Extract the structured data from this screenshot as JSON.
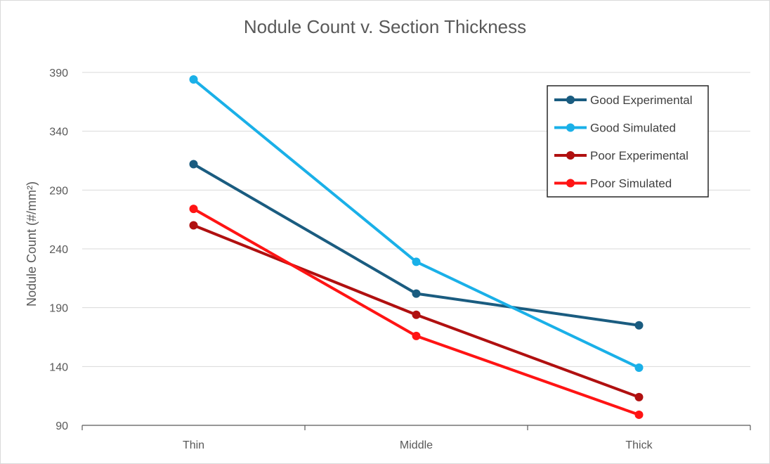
{
  "chart_data": {
    "type": "line",
    "title": "Nodule Count v. Section Thickness",
    "xlabel": "",
    "ylabel": "Nodule Count (#/mm²)",
    "categories": [
      "Thin",
      "Middle",
      "Thick"
    ],
    "ylim": [
      90,
      400
    ],
    "yticks": [
      90,
      140,
      190,
      240,
      290,
      340,
      390
    ],
    "grid": true,
    "legend_position": "top-right",
    "series": [
      {
        "name": "Good Experimental",
        "color": "#1a5c80",
        "values": [
          312,
          202,
          175
        ]
      },
      {
        "name": "Good Simulated",
        "color": "#1ab0e8",
        "values": [
          384,
          229,
          139
        ]
      },
      {
        "name": "Poor Experimental",
        "color": "#b01010",
        "values": [
          260,
          184,
          114
        ]
      },
      {
        "name": "Poor Simulated",
        "color": "#ff1414",
        "values": [
          274,
          166,
          99
        ]
      }
    ]
  }
}
